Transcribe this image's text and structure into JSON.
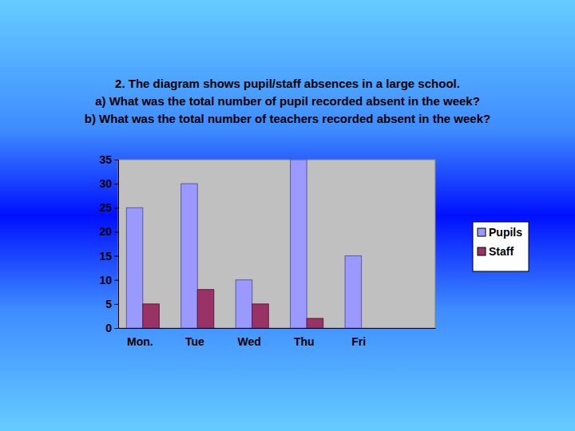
{
  "chart_data": {
    "type": "bar",
    "title": [
      "2.  The diagram shows pupil/staff absences in a large school.",
      "a) What was the total number of pupil recorded absent in the week?",
      "b)  What was the total number of teachers recorded absent in the week?"
    ],
    "categories": [
      "Mon.",
      "Tue",
      "Wed",
      "Thu",
      "Fri",
      null
    ],
    "series": [
      {
        "name": "Pupils",
        "color": "#9999ff",
        "values": [
          25,
          30,
          10,
          35,
          15,
          null
        ]
      },
      {
        "name": "Staff",
        "color": "#993366",
        "values": [
          5,
          8,
          5,
          2,
          0,
          null
        ]
      }
    ],
    "ylim": [
      0,
      35
    ],
    "yticks": [
      0,
      5,
      10,
      15,
      20,
      25,
      30,
      35
    ],
    "grid": false,
    "legend": "right"
  }
}
